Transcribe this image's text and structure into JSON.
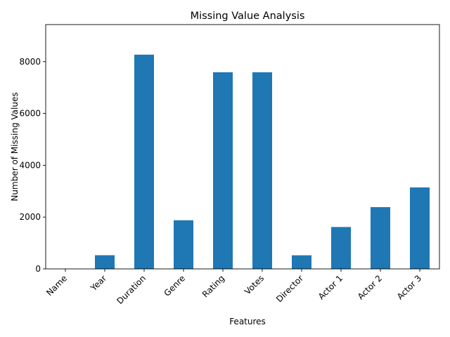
{
  "chart_data": {
    "type": "bar",
    "title": "Missing Value Analysis",
    "xlabel": "Features",
    "ylabel": "Number of Missing Values",
    "categories": [
      "Name",
      "Year",
      "Duration",
      "Genre",
      "Rating",
      "Votes",
      "Director",
      "Actor 1",
      "Actor 2",
      "Actor 3"
    ],
    "values": [
      0,
      528,
      8269,
      1877,
      7590,
      7589,
      525,
      1617,
      2384,
      3144
    ],
    "yticks": [
      0,
      2000,
      4000,
      6000,
      8000
    ],
    "ylim": [
      0,
      9430
    ],
    "bar_color": "#1f77b4",
    "grid": false,
    "legend": "none"
  }
}
